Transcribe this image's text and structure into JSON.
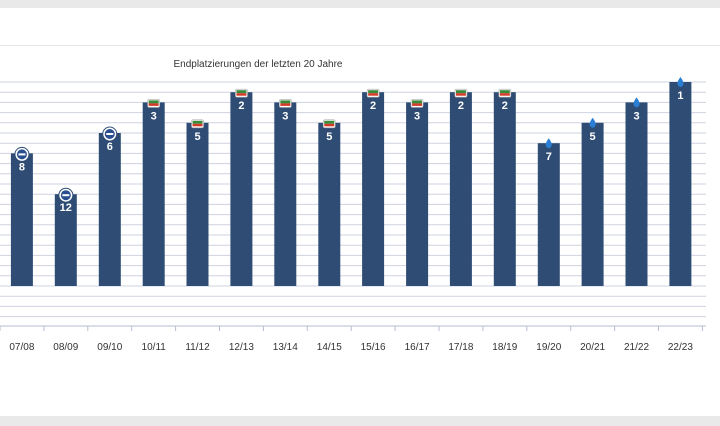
{
  "chart_data": {
    "type": "bar",
    "title": "Endplatzierungen der letzten 20 Jahre",
    "xlabel": "",
    "ylabel": "",
    "categories": [
      "07/08",
      "08/09",
      "09/10",
      "10/11",
      "11/12",
      "12/13",
      "13/14",
      "14/15",
      "15/16",
      "16/17",
      "17/18",
      "18/19",
      "19/20",
      "20/21",
      "21/22",
      "22/23"
    ],
    "values": [
      8,
      12,
      6,
      3,
      5,
      2,
      3,
      5,
      2,
      3,
      2,
      2,
      7,
      5,
      3,
      1
    ],
    "labels": [
      "8",
      "12",
      "6",
      "3",
      "5",
      "2",
      "3",
      "5",
      "2",
      "3",
      "2",
      "2",
      "7",
      "5",
      "3",
      "1"
    ],
    "badges": [
      "league-2-logo",
      "league-2-logo",
      "league-2-logo",
      "league-1-logo",
      "league-1-logo",
      "league-1-logo",
      "league-1-logo",
      "league-1-logo",
      "league-1-logo",
      "league-1-logo",
      "league-1-logo",
      "league-1-logo",
      "drop-logo",
      "drop-logo",
      "drop-logo",
      "drop-logo"
    ],
    "ylim": [
      0,
      20
    ],
    "y_inverted": true,
    "grid": true,
    "bar_color": "#2f4d74",
    "label_color": "#ffffff",
    "grid_color": "#cfd3e0",
    "tick_color": "#333333"
  }
}
